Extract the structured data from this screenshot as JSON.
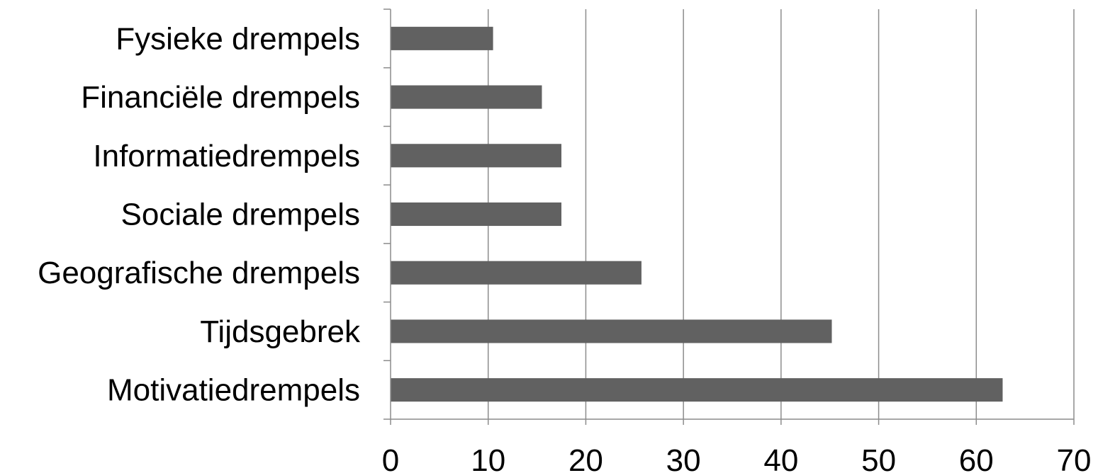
{
  "chart_data": {
    "type": "bar",
    "orientation": "horizontal",
    "title": "",
    "xlabel": "",
    "ylabel": "",
    "categories": [
      "Fysieke drempels",
      "Financiële drempels",
      "Informatiedrempels",
      "Sociale drempels",
      "Geografische drempels",
      "Tijdsgebrek",
      "Motivatiedrempels"
    ],
    "values": [
      10.5,
      15.5,
      17.5,
      17.5,
      25.7,
      45.2,
      62.7
    ],
    "xlim": [
      0,
      70
    ],
    "xticks": [
      "0",
      "10",
      "20",
      "30",
      "40",
      "50",
      "60",
      "70"
    ],
    "grid": "vertical",
    "legend": "none",
    "bar_color": "#616161"
  }
}
